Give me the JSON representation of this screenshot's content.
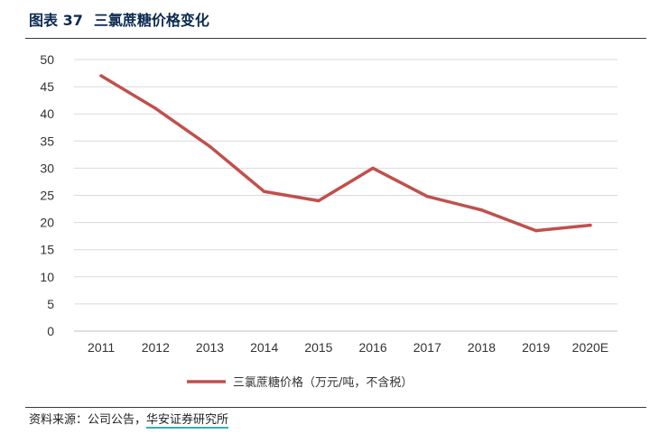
{
  "header": {
    "figure_label": "图表 37",
    "title": "三氯蔗糖价格变化"
  },
  "footer": {
    "source_label": "资料来源：公司公告，",
    "source_org": "华安证券研究所"
  },
  "chart_data": {
    "type": "line",
    "title": "三氯蔗糖价格变化",
    "categories": [
      "2011",
      "2012",
      "2013",
      "2014",
      "2015",
      "2016",
      "2017",
      "2018",
      "2019",
      "2020E"
    ],
    "series": [
      {
        "name": "三氯蔗糖价格（万元/吨，不含税）",
        "values": [
          47,
          41,
          34,
          25.7,
          24,
          30,
          24.8,
          22.3,
          18.5,
          19.5
        ],
        "color": "#c0504d"
      }
    ],
    "ylim": [
      0,
      50
    ],
    "yticks": [
      0,
      5,
      10,
      15,
      20,
      25,
      30,
      35,
      40,
      45,
      50
    ],
    "grid": true,
    "legend": "bottom-center"
  }
}
